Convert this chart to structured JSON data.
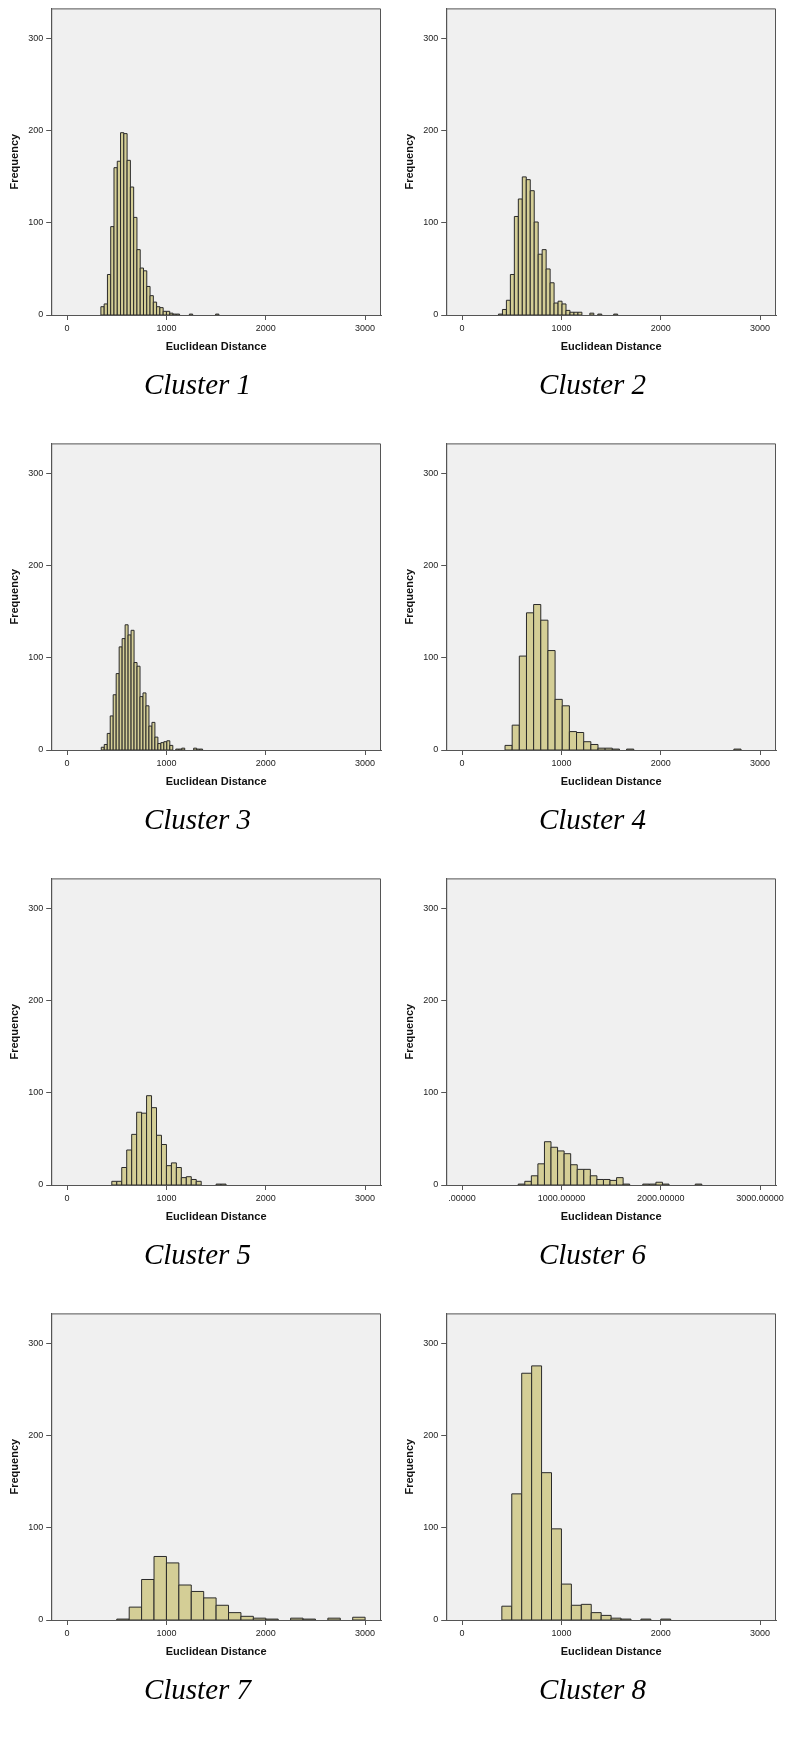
{
  "chart_data": [
    {
      "type": "histogram",
      "title": "Cluster 1",
      "xlabel": "Euclidean Distance",
      "ylabel": "Frequency",
      "color": "#d4ce96",
      "xlim": [
        -160,
        3160
      ],
      "ylim": [
        0,
        333
      ],
      "xticks": [
        0,
        1000,
        2000,
        3000
      ],
      "yticks": [
        0,
        100,
        200,
        300
      ],
      "bins": [
        340,
        373,
        406,
        439,
        472,
        505,
        538,
        571,
        604,
        637,
        670,
        703,
        736,
        769,
        802,
        835,
        868,
        901,
        934,
        967,
        1000,
        1033,
        1066,
        1099,
        1132,
        1165,
        1198,
        1231,
        1264,
        1297,
        1330,
        1363,
        1396,
        1429,
        1462,
        1495,
        1528
      ],
      "values": [
        9,
        12,
        44,
        96,
        160,
        167,
        198,
        197,
        168,
        139,
        106,
        71,
        51,
        48,
        31,
        21,
        14,
        9,
        8,
        4,
        4,
        2,
        1,
        1,
        0,
        0,
        0,
        1,
        0,
        0,
        0,
        0,
        0,
        0,
        0,
        1
      ]
    },
    {
      "type": "histogram",
      "title": "Cluster 2",
      "xlabel": "Euclidean Distance",
      "ylabel": "Frequency",
      "color": "#d4ce96",
      "xlim": [
        -160,
        3160
      ],
      "ylim": [
        0,
        333
      ],
      "xticks": [
        0,
        1000,
        2000,
        3000
      ],
      "yticks": [
        0,
        100,
        200,
        300
      ],
      "bins": [
        366,
        406,
        446,
        486,
        526,
        566,
        606,
        646,
        686,
        726,
        766,
        806,
        846,
        886,
        926,
        966,
        1006,
        1046,
        1086,
        1126,
        1166,
        1206,
        1246,
        1286,
        1326,
        1366,
        1406,
        1446,
        1486,
        1526,
        1566
      ],
      "values": [
        1,
        6,
        16,
        44,
        107,
        126,
        150,
        147,
        135,
        101,
        66,
        71,
        50,
        35,
        13,
        15,
        12,
        5,
        3,
        3,
        3,
        0,
        0,
        2,
        0,
        1,
        0,
        0,
        0,
        1
      ]
    },
    {
      "type": "histogram",
      "title": "Cluster 3",
      "xlabel": "Euclidean Distance",
      "ylabel": "Frequency",
      "color": "#d4ce96",
      "xlim": [
        -160,
        3160
      ],
      "ylim": [
        0,
        333
      ],
      "xticks": [
        0,
        1000,
        2000,
        3000
      ],
      "yticks": [
        0,
        100,
        200,
        300
      ],
      "bins": [
        344,
        374,
        404,
        434,
        464,
        494,
        524,
        554,
        584,
        614,
        644,
        674,
        704,
        734,
        764,
        794,
        824,
        854,
        884,
        914,
        944,
        974,
        1004,
        1034,
        1064,
        1094,
        1124,
        1154,
        1184,
        1214,
        1244,
        1274,
        1304,
        1334,
        1364
      ],
      "values": [
        3,
        6,
        18,
        37,
        60,
        83,
        112,
        121,
        136,
        125,
        130,
        95,
        91,
        58,
        62,
        48,
        26,
        30,
        14,
        7,
        8,
        9,
        10,
        5,
        0,
        1,
        1,
        2,
        0,
        0,
        0,
        2,
        1,
        1
      ]
    },
    {
      "type": "histogram",
      "title": "Cluster 4",
      "xlabel": "Euclidean Distance",
      "ylabel": "Frequency",
      "color": "#d4ce96",
      "xlim": [
        -160,
        3160
      ],
      "ylim": [
        0,
        333
      ],
      "xticks": [
        0,
        1000,
        2000,
        3000
      ],
      "yticks": [
        0,
        100,
        200,
        300
      ],
      "bins": [
        432,
        504,
        576,
        648,
        720,
        792,
        864,
        936,
        1008,
        1080,
        1152,
        1224,
        1296,
        1368,
        1440,
        1512,
        1584,
        1656,
        1728,
        1800,
        1872,
        1944,
        2016,
        2088,
        2160,
        2232,
        2304,
        2376,
        2448,
        2520,
        2592,
        2664,
        2736,
        2808
      ],
      "values": [
        5,
        27,
        102,
        149,
        158,
        141,
        108,
        55,
        48,
        20,
        19,
        9,
        6,
        2,
        2,
        1,
        0,
        1,
        0,
        0,
        0,
        0,
        0,
        0,
        0,
        0,
        0,
        0,
        0,
        0,
        0,
        0,
        1
      ]
    },
    {
      "type": "histogram",
      "title": "Cluster 5",
      "xlabel": "Euclidean Distance",
      "ylabel": "Frequency",
      "color": "#d4ce96",
      "xlim": [
        -160,
        3160
      ],
      "ylim": [
        0,
        333
      ],
      "xticks": [
        0,
        1000,
        2000,
        3000
      ],
      "yticks": [
        0,
        100,
        200,
        300
      ],
      "bins": [
        450,
        500,
        550,
        600,
        650,
        700,
        750,
        800,
        850,
        900,
        950,
        1000,
        1050,
        1100,
        1150,
        1200,
        1250,
        1300,
        1350,
        1400,
        1450,
        1500,
        1550,
        1600
      ],
      "values": [
        4,
        4,
        19,
        38,
        55,
        79,
        78,
        97,
        84,
        54,
        44,
        21,
        24,
        19,
        8,
        9,
        6,
        4,
        0,
        0,
        0,
        1,
        1
      ]
    },
    {
      "type": "histogram",
      "title": "Cluster 6",
      "xlabel": "Euclidean Distance",
      "ylabel": "Frequency",
      "color": "#d4ce96",
      "xlim": [
        -160,
        3160
      ],
      "ylim": [
        0,
        333
      ],
      "xticks": [
        {
          "value": 0,
          "label": ".00000"
        },
        {
          "value": 1000,
          "label": "1000.00000"
        },
        {
          "value": 2000,
          "label": "2000.00000"
        },
        {
          "value": 3000,
          "label": "3000.00000"
        }
      ],
      "yticks": [
        0,
        100,
        200,
        300
      ],
      "bins": [
        565,
        631,
        697,
        763,
        829,
        895,
        961,
        1027,
        1093,
        1159,
        1225,
        1291,
        1357,
        1423,
        1489,
        1555,
        1621,
        1687,
        1753,
        1819,
        1885,
        1951,
        2017,
        2083,
        2149,
        2215,
        2281,
        2347,
        2413
      ],
      "values": [
        1,
        4,
        10,
        23,
        47,
        41,
        37,
        34,
        22,
        17,
        17,
        10,
        6,
        6,
        5,
        8,
        1,
        0,
        0,
        1,
        1,
        3,
        1,
        0,
        0,
        0,
        0,
        1
      ]
    },
    {
      "type": "histogram",
      "title": "Cluster 7",
      "xlabel": "Euclidean Distance",
      "ylabel": "Frequency",
      "color": "#d4ce96",
      "xlim": [
        -160,
        3160
      ],
      "ylim": [
        0,
        333
      ],
      "xticks": [
        0,
        1000,
        2000,
        3000
      ],
      "yticks": [
        0,
        100,
        200,
        300
      ],
      "bins": [
        500,
        625,
        750,
        875,
        1000,
        1125,
        1250,
        1375,
        1500,
        1625,
        1750,
        1875,
        2000,
        2125,
        2250,
        2375,
        2500,
        2625,
        2750,
        2875,
        3000
      ],
      "values": [
        1,
        14,
        44,
        69,
        62,
        38,
        31,
        24,
        16,
        8,
        4,
        2,
        1,
        0,
        2,
        1,
        0,
        2,
        0,
        3
      ]
    },
    {
      "type": "histogram",
      "title": "Cluster 8",
      "xlabel": "Euclidean Distance",
      "ylabel": "Frequency",
      "color": "#d4ce96",
      "xlim": [
        -160,
        3160
      ],
      "ylim": [
        0,
        333
      ],
      "xticks": [
        0,
        1000,
        2000,
        3000
      ],
      "yticks": [
        0,
        100,
        200,
        300
      ],
      "bins": [
        400,
        500,
        600,
        700,
        800,
        900,
        1000,
        1100,
        1200,
        1300,
        1400,
        1500,
        1600,
        1700,
        1800,
        1900,
        2000,
        2100
      ],
      "values": [
        15,
        137,
        268,
        276,
        160,
        99,
        39,
        16,
        17,
        8,
        5,
        2,
        1,
        0,
        1,
        0,
        1
      ]
    }
  ]
}
